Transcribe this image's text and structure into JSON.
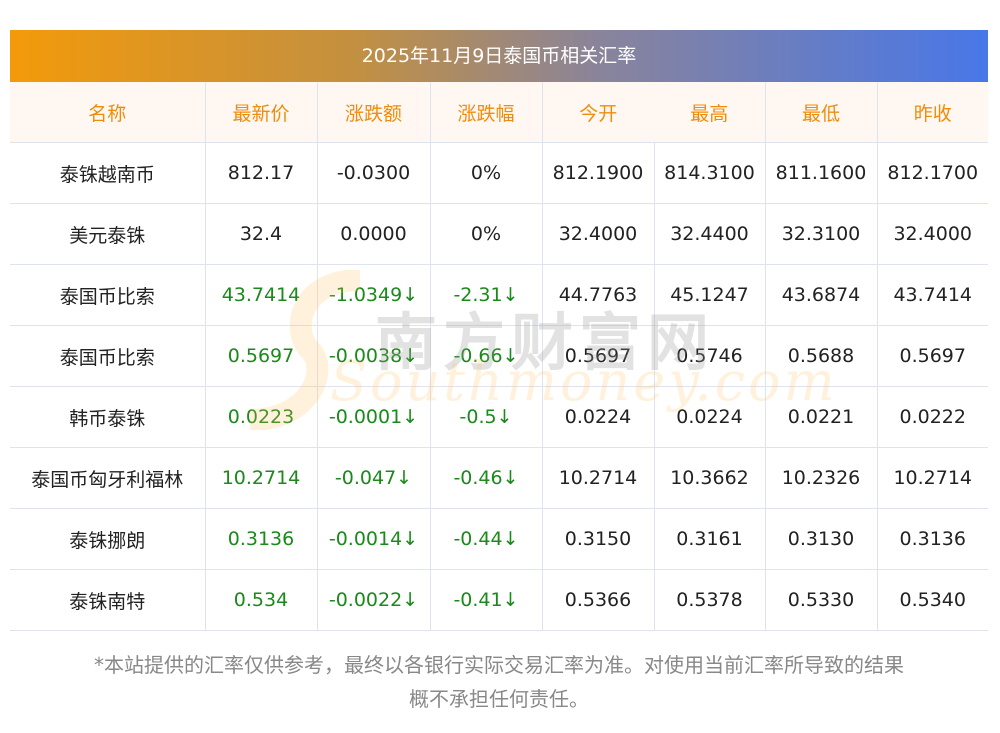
{
  "title": "2025年11月9日泰国币相关汇率",
  "headers": [
    "名称",
    "最新价",
    "涨跌额",
    "涨跌幅",
    "今开",
    "最高",
    "最低",
    "昨收"
  ],
  "rows": [
    {
      "name": "泰铢越南币",
      "latest": "812.17",
      "change": "-0.0300",
      "pct": "0%",
      "open": "812.1900",
      "high": "814.3100",
      "low": "811.1600",
      "prev": "812.1700",
      "down": false
    },
    {
      "name": "美元泰铢",
      "latest": "32.4",
      "change": "0.0000",
      "pct": "0%",
      "open": "32.4000",
      "high": "32.4400",
      "low": "32.3100",
      "prev": "32.4000",
      "down": false
    },
    {
      "name": "泰国币比索",
      "latest": "43.7414",
      "change": "-1.0349↓",
      "pct": "-2.31↓",
      "open": "44.7763",
      "high": "45.1247",
      "low": "43.6874",
      "prev": "43.7414",
      "down": true
    },
    {
      "name": "泰国币比索",
      "latest": "0.5697",
      "change": "-0.0038↓",
      "pct": "-0.66↓",
      "open": "0.5697",
      "high": "0.5746",
      "low": "0.5688",
      "prev": "0.5697",
      "down": true
    },
    {
      "name": "韩币泰铢",
      "latest": "0.0223",
      "change": "-0.0001↓",
      "pct": "-0.5↓",
      "open": "0.0224",
      "high": "0.0224",
      "low": "0.0221",
      "prev": "0.0222",
      "down": true
    },
    {
      "name": "泰国币匈牙利福林",
      "latest": "10.2714",
      "change": "-0.047↓",
      "pct": "-0.46↓",
      "open": "10.2714",
      "high": "10.3662",
      "low": "10.2326",
      "prev": "10.2714",
      "down": true
    },
    {
      "name": "泰铢挪朗",
      "latest": "0.3136",
      "change": "-0.0014↓",
      "pct": "-0.44↓",
      "open": "0.3150",
      "high": "0.3161",
      "low": "0.3130",
      "prev": "0.3136",
      "down": true
    },
    {
      "name": "泰铢南特",
      "latest": "0.534",
      "change": "-0.0022↓",
      "pct": "-0.41↓",
      "open": "0.5366",
      "high": "0.5378",
      "low": "0.5330",
      "prev": "0.5340",
      "down": true
    }
  ],
  "watermark": {
    "cn": "南方财富网",
    "en": "Southmoney.com"
  },
  "note": [
    "*本站提供的汇率仅供参考，最终以各银行实际交易汇率为准。对使用当前汇率所导致的结果",
    "概不承担任何责任。"
  ],
  "colors": {
    "header_text": "#f08c0c",
    "down": "#1a8a1a",
    "gradient_start": "#f39a0a",
    "gradient_end": "#4877e8"
  }
}
